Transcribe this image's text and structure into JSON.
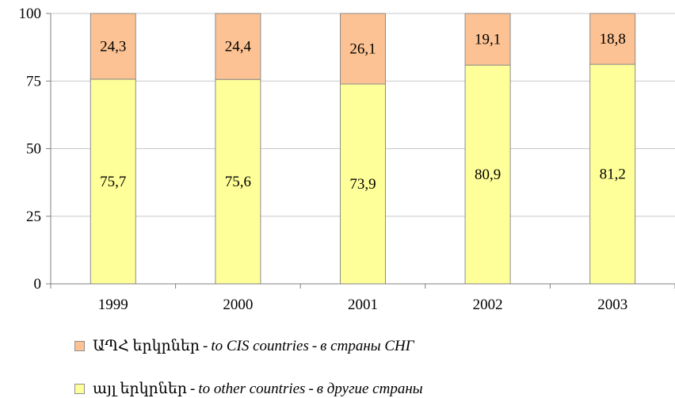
{
  "chart_data": {
    "type": "bar",
    "stacked": true,
    "categories": [
      "1999",
      "2000",
      "2001",
      "2002",
      "2003"
    ],
    "series": [
      {
        "name_hy": "այլ երկրներ",
        "name_en": "to other countries",
        "name_ru": "в другие страны",
        "values": [
          75.7,
          75.6,
          73.9,
          80.9,
          81.2
        ],
        "labels": [
          "75,7",
          "75,6",
          "73,9",
          "80,9",
          "81,2"
        ],
        "color": "#ffff99"
      },
      {
        "name_hy": "ԱՊՀ երկրներ",
        "name_en": "to CIS countries",
        "name_ru": "в страны СНГ",
        "values": [
          24.3,
          24.4,
          26.1,
          19.1,
          18.8
        ],
        "labels": [
          "24,3",
          "24,4",
          "26,1",
          "19,1",
          "18,8"
        ],
        "color": "#fcc293"
      }
    ],
    "yticks": [
      "0",
      "25",
      "50",
      "75",
      "100"
    ],
    "ylim": [
      0,
      100
    ],
    "grid": true,
    "legend_position": "bottom"
  },
  "legend": {
    "separator": "-"
  }
}
